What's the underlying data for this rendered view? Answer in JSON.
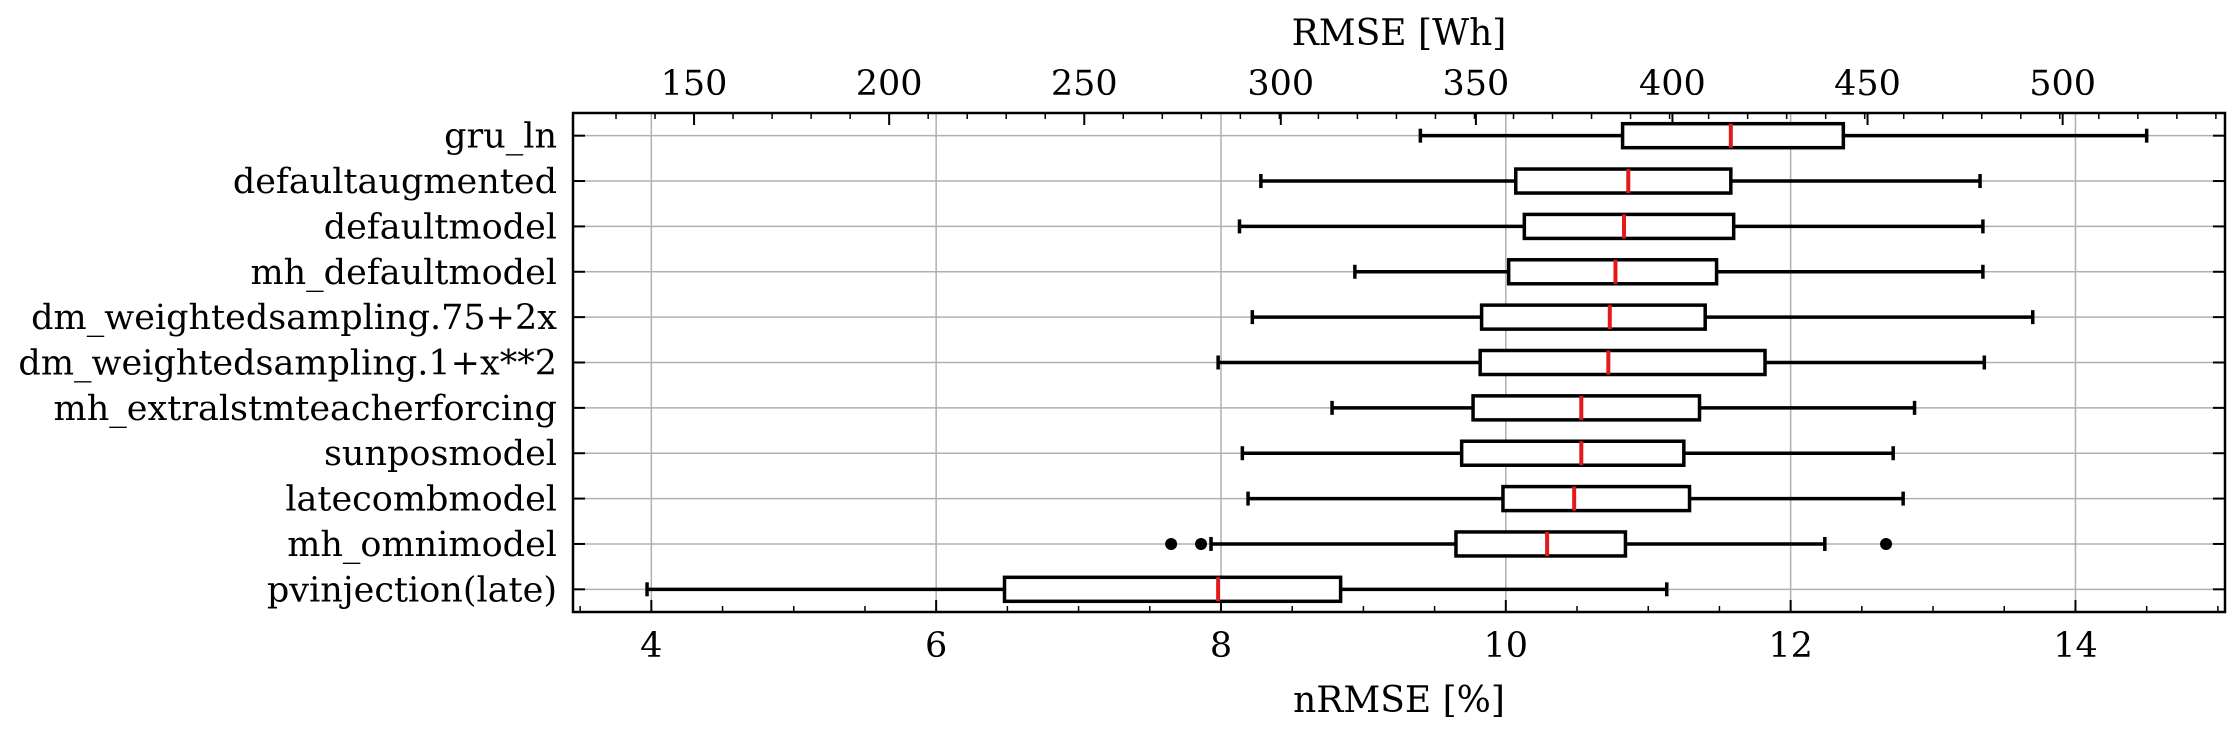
{
  "chart_data": {
    "type": "boxplot",
    "orientation": "horizontal",
    "xlabel": "nRMSE [%]",
    "xlim": [
      3.45,
      15.05
    ],
    "xticks": [
      4,
      6,
      8,
      10,
      12,
      14
    ],
    "x2label": "RMSE [Wh]",
    "x2ticks": [
      {
        "label": "150",
        "at": 4.3
      },
      {
        "label": "200",
        "at": 5.67
      },
      {
        "label": "250",
        "at": 7.04
      },
      {
        "label": "300",
        "at": 8.42
      },
      {
        "label": "350",
        "at": 9.79
      },
      {
        "label": "400",
        "at": 11.17
      },
      {
        "label": "450",
        "at": 12.54
      },
      {
        "label": "500",
        "at": 13.91
      }
    ],
    "grid": true,
    "median_color": "#e31a1c",
    "categories": [
      "gru_ln",
      "defaultaugmented",
      "defaultmodel",
      "mh_defaultmodel",
      "dm_weightedsampling.75+2x",
      "dm_weightedsampling.1+x**2",
      "mh_extralstmteacherforcing",
      "sunposmodel",
      "latecombmodel",
      "mh_omnimodel",
      "pvinjection(late)"
    ],
    "boxes": [
      {
        "whislo": 9.4,
        "q1": 10.82,
        "med": 11.58,
        "q3": 12.37,
        "whishi": 14.5,
        "fliers": []
      },
      {
        "whislo": 8.28,
        "q1": 10.07,
        "med": 10.86,
        "q3": 11.58,
        "whishi": 13.33,
        "fliers": []
      },
      {
        "whislo": 8.13,
        "q1": 10.13,
        "med": 10.83,
        "q3": 11.6,
        "whishi": 13.35,
        "fliers": []
      },
      {
        "whislo": 8.94,
        "q1": 10.02,
        "med": 10.77,
        "q3": 11.48,
        "whishi": 13.35,
        "fliers": []
      },
      {
        "whislo": 8.22,
        "q1": 9.83,
        "med": 10.73,
        "q3": 11.4,
        "whishi": 13.7,
        "fliers": []
      },
      {
        "whislo": 7.98,
        "q1": 9.82,
        "med": 10.72,
        "q3": 11.82,
        "whishi": 13.36,
        "fliers": []
      },
      {
        "whislo": 8.78,
        "q1": 9.77,
        "med": 10.53,
        "q3": 11.36,
        "whishi": 12.87,
        "fliers": []
      },
      {
        "whislo": 8.15,
        "q1": 9.69,
        "med": 10.53,
        "q3": 11.25,
        "whishi": 12.72,
        "fliers": []
      },
      {
        "whislo": 8.19,
        "q1": 9.98,
        "med": 10.48,
        "q3": 11.29,
        "whishi": 12.79,
        "fliers": []
      },
      {
        "whislo": 7.93,
        "q1": 9.65,
        "med": 10.29,
        "q3": 10.84,
        "whishi": 12.24,
        "fliers": [
          7.65,
          7.86,
          12.67
        ]
      },
      {
        "whislo": 3.97,
        "q1": 6.48,
        "med": 7.98,
        "q3": 8.84,
        "whishi": 11.13,
        "fliers": []
      }
    ]
  }
}
